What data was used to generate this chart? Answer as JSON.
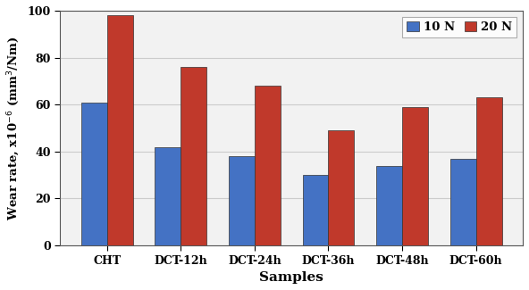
{
  "categories": [
    "CHT",
    "DCT-12h",
    "DCT-24h",
    "DCT-36h",
    "DCT-48h",
    "DCT-60h"
  ],
  "values_10N": [
    61,
    42,
    38,
    30,
    34,
    37
  ],
  "values_20N": [
    98,
    76,
    68,
    49,
    59,
    63
  ],
  "color_10N": "#4472C4",
  "color_20N": "#C0392B",
  "xlabel": "Samples",
  "ylabel": "Wear rate, x10$^{-6}$ (mm$^{3}$/Nm)",
  "ylim": [
    0,
    100
  ],
  "yticks": [
    0,
    20,
    40,
    60,
    80,
    100
  ],
  "legend_10N": "10 N",
  "legend_20N": "20 N",
  "bar_width": 0.35,
  "figsize": [
    5.92,
    3.25
  ],
  "dpi": 100,
  "bg_color": "#f0f0f0"
}
